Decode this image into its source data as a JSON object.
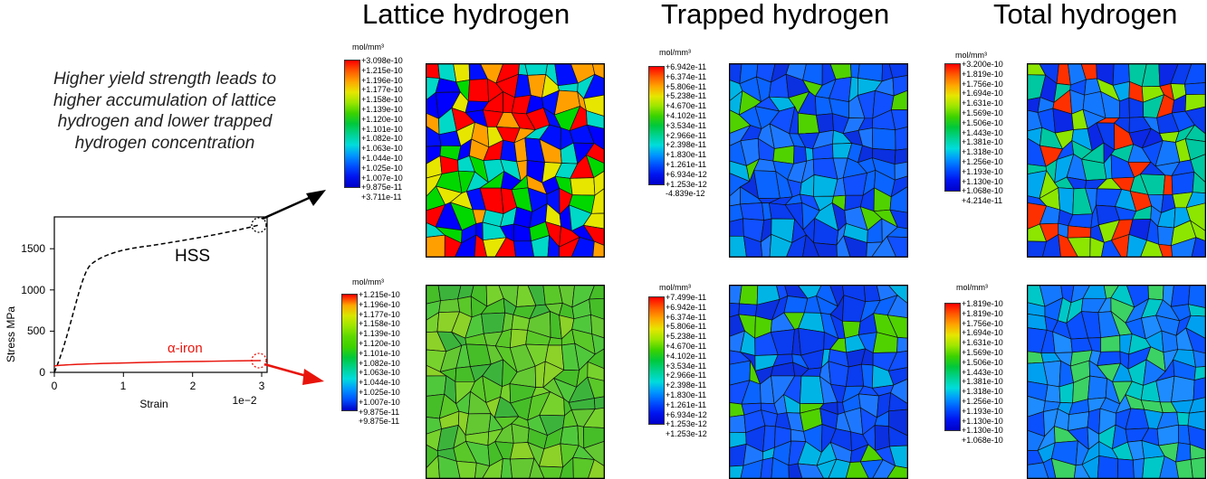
{
  "columns": [
    "Lattice hydrogen",
    "Trapped hydrogen",
    "Total hydrogen"
  ],
  "caption": "Higher yield strength leads to higher accumulation of lattice hydrogen and lower trapped hydrogen concentration",
  "unit": "mol/mm³",
  "stress_strain": {
    "ylabel": "Stress MPa",
    "xlabel": "Strain",
    "x_scale_label": "1e−2",
    "yticks": [
      "0",
      "500",
      "1000",
      "1500"
    ],
    "xticks": [
      "0",
      "1",
      "2",
      "3"
    ],
    "series": [
      {
        "name": "HSS",
        "color": "#000000"
      },
      {
        "name": "α-iron",
        "color": "#e8140c"
      }
    ]
  },
  "legends": {
    "top_lattice": [
      "+3.098e-10",
      "+1.215e-10",
      "+1.196e-10",
      "+1.177e-10",
      "+1.158e-10",
      "+1.139e-10",
      "+1.120e-10",
      "+1.101e-10",
      "+1.082e-10",
      "+1.063e-10",
      "+1.044e-10",
      "+1.025e-10",
      "+1.007e-10",
      "+9.875e-11",
      "+3.711e-11"
    ],
    "top_trapped": [
      "+6.942e-11",
      "+6.374e-11",
      "+5.806e-11",
      "+5.238e-11",
      "+4.670e-11",
      "+4.102e-11",
      "+3.534e-11",
      "+2.966e-11",
      "+2.398e-11",
      "+1.830e-11",
      "+1.261e-11",
      "+6.934e-12",
      "+1.253e-12",
      "-4.839e-12"
    ],
    "top_total": [
      "+3.200e-10",
      "+1.819e-10",
      "+1.756e-10",
      "+1.694e-10",
      "+1.631e-10",
      "+1.569e-10",
      "+1.506e-10",
      "+1.443e-10",
      "+1.381e-10",
      "+1.318e-10",
      "+1.256e-10",
      "+1.193e-10",
      "+1.130e-10",
      "+1.068e-10",
      "+4.214e-11"
    ],
    "bottom_lattice": [
      "+1.215e-10",
      "+1.196e-10",
      "+1.177e-10",
      "+1.158e-10",
      "+1.139e-10",
      "+1.120e-10",
      "+1.101e-10",
      "+1.082e-10",
      "+1.063e-10",
      "+1.044e-10",
      "+1.025e-10",
      "+1.007e-10",
      "+9.875e-11",
      "+9.875e-11"
    ],
    "bottom_trapped": [
      "+7.499e-11",
      "+6.942e-11",
      "+6.374e-11",
      "+5.806e-11",
      "+5.238e-11",
      "+4.670e-11",
      "+4.102e-11",
      "+3.534e-11",
      "+2.966e-11",
      "+2.398e-11",
      "+1.830e-11",
      "+1.261e-11",
      "+6.934e-12",
      "+1.253e-12",
      "+1.253e-12"
    ],
    "bottom_total": [
      "+1.819e-10",
      "+1.819e-10",
      "+1.756e-10",
      "+1.694e-10",
      "+1.631e-10",
      "+1.569e-10",
      "+1.506e-10",
      "+1.443e-10",
      "+1.381e-10",
      "+1.318e-10",
      "+1.256e-10",
      "+1.193e-10",
      "+1.130e-10",
      "+1.130e-10",
      "+1.068e-10"
    ]
  },
  "colors": {
    "contour_scale": [
      "#ff0000",
      "#ff5a00",
      "#ffa500",
      "#e6e600",
      "#9ce600",
      "#3cd200",
      "#00c83c",
      "#00d291",
      "#00dcdc",
      "#0096ff",
      "#0050ff",
      "#0014f0",
      "#0000c8"
    ],
    "hss_line": "#000000",
    "iron_line": "#e8140c"
  }
}
